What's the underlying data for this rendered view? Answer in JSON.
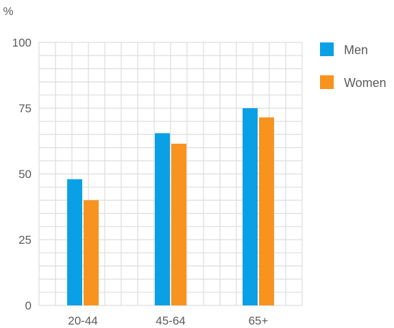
{
  "chart_data": {
    "type": "bar",
    "ylabel": "%",
    "ylim": [
      0,
      100
    ],
    "yticks": [
      "0",
      "25",
      "50",
      "75",
      "100"
    ],
    "categories": [
      "20-44",
      "45-64",
      "65+"
    ],
    "series": [
      {
        "name": "Men",
        "color": "#0aa0e6",
        "values": [
          48,
          65.5,
          75
        ]
      },
      {
        "name": "Women",
        "color": "#f7931e",
        "values": [
          40,
          61.5,
          71.5
        ]
      }
    ],
    "grid": true,
    "legend": "top-right"
  }
}
